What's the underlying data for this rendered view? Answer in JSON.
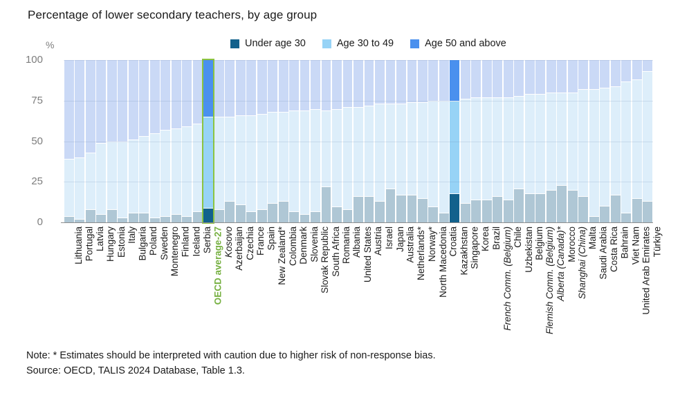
{
  "header": {
    "title": "Percentage of lower secondary teachers, by age group"
  },
  "footer": {
    "note": "Note: * Estimates should be interpreted with caution due to higher risk of non-response bias.",
    "source": "Source: OECD, TALIS 2024 Database, Table 1.3."
  },
  "colors": {
    "under30_highlight": "#12618c",
    "age3049_highlight": "#97d3f6",
    "age50_highlight": "#4a90ee",
    "under30_muted": "#afc7d5",
    "age3049_muted": "#ddeefa",
    "age50_muted": "#cad9f6",
    "highlight_border": "#8cc43f",
    "oecd_label_green": "#76b041",
    "axis_gray": "#7d7d7d"
  },
  "chart_data": {
    "type": "bar",
    "stacked": true,
    "title": "Percentage of lower secondary teachers, by age group",
    "unit": "%",
    "ylim": [
      0,
      100
    ],
    "yticks": [
      100,
      75,
      50,
      25,
      0
    ],
    "grid": true,
    "legend_position": "top",
    "categories": [
      "Lithuania",
      "Portugal",
      "Latvia",
      "Hungary",
      "Estonia",
      "Italy",
      "Bulgaria",
      "Poland",
      "Sweden",
      "Montenegro",
      "Finland",
      "Iceland",
      "Serbia",
      "OECD average-27",
      "Kosovo",
      "Azerbaijan",
      "Czechia",
      "France",
      "Spain",
      "New Zealand*",
      "Colombia",
      "Denmark",
      "Slovenia",
      "Slovak Republic",
      "South Africa",
      "Romania",
      "Albania",
      "United States",
      "Austria",
      "Israel",
      "Japan",
      "Australia",
      "Netherlands*",
      "Norway*",
      "North Macedonia",
      "Croatia",
      "Kazakhstan",
      "Singapore",
      "Korea",
      "Brazil",
      "French Comm. (Belgium)",
      "Chile",
      "Uzbekistan",
      "Belgium",
      "Flemish Comm. (Belgium)",
      "Alberta (Canada)*",
      "Morocco",
      "Shanghai (China)",
      "Malta",
      "Saudi Arabia",
      "Costa Rica",
      "Bahrain",
      "Viet Nam",
      "United Arab Emirates",
      "Türkiye"
    ],
    "italic_categories": [
      "Kosovo",
      "French Comm. (Belgium)",
      "Flemish Comm. (Belgium)",
      "Alberta (Canada)*",
      "Shanghai (China)"
    ],
    "highlighted_categories": [
      "OECD average-27",
      "Kazakhstan"
    ],
    "green_outline_category": "OECD average-27",
    "series": [
      {
        "name": "Under age 30",
        "values": [
          4,
          2,
          8,
          5,
          8,
          3,
          6,
          6,
          3,
          4,
          5,
          4,
          7,
          9,
          8,
          13,
          11,
          7,
          8,
          12,
          13,
          7,
          5,
          7,
          22,
          10,
          8,
          16,
          16,
          13,
          21,
          17,
          17,
          15,
          10,
          6,
          18,
          12,
          14,
          14,
          16,
          14,
          21,
          18,
          18,
          20,
          23,
          20,
          16,
          4,
          10,
          17,
          6,
          15,
          13
        ]
      },
      {
        "name": "Age 30 to 49",
        "values": [
          35,
          38,
          35,
          44,
          42,
          47,
          45,
          47,
          52,
          53,
          53,
          55,
          54,
          56,
          57,
          52,
          55,
          59,
          59,
          56,
          55,
          62,
          64,
          63,
          47,
          60,
          63,
          55,
          56,
          60,
          52,
          56,
          57,
          59,
          65,
          69,
          57,
          64,
          63,
          63,
          61,
          63,
          57,
          61,
          61,
          60,
          57,
          60,
          66,
          78,
          73,
          67,
          81,
          73,
          80
        ]
      },
      {
        "name": "Age 50 and above",
        "values": [
          61,
          60,
          57,
          51,
          50,
          50,
          49,
          47,
          45,
          43,
          42,
          41,
          39,
          35,
          35,
          35,
          34,
          34,
          33,
          32,
          32,
          31,
          31,
          30,
          31,
          30,
          29,
          29,
          28,
          27,
          27,
          27,
          26,
          26,
          25,
          25,
          25,
          24,
          23,
          23,
          23,
          23,
          22,
          21,
          21,
          20,
          20,
          20,
          18,
          18,
          17,
          16,
          13,
          12,
          7
        ]
      }
    ]
  }
}
